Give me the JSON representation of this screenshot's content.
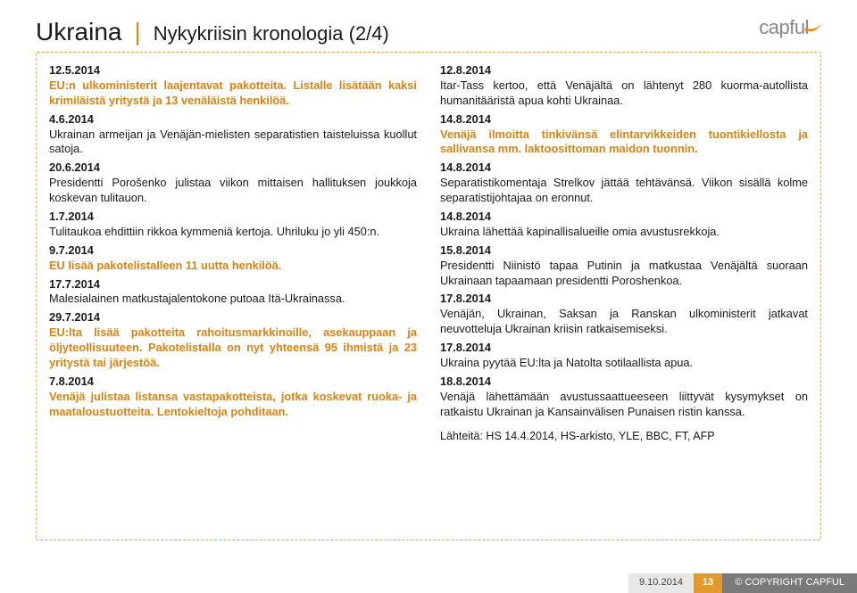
{
  "header": {
    "title_main": "Ukraina",
    "title_sub": "Nykykriisin kronologia (2/4)"
  },
  "logo": {
    "text": "capful"
  },
  "col_left": [
    {
      "date": "12.5.2014",
      "text": "EU:n ulkoministerit laajentavat pakotteita. Listalle lisätään kaksi krimiläistä yritystä ja 13 venäläistä henkilöä.",
      "hl": true
    },
    {
      "date": "4.6.2014",
      "text": "Ukrainan armeijan ja Venäjän-mielisten separatistien taisteluissa kuollut satoja.",
      "hl": false
    },
    {
      "date": "20.6.2014",
      "text": "Presidentti Porošenko julistaa viikon mittaisen hallituksen joukkoja koskevan tulitauon.",
      "hl": false
    },
    {
      "date": "1.7.2014",
      "text": "Tulitaukoa ehdittiin rikkoa kymmeniä kertoja. Uhriluku jo yli 450:n.",
      "hl": false
    },
    {
      "date": "9.7.2014",
      "text": "EU lisää pakotelistalleen 11 uutta henkilöä.",
      "hl": true
    },
    {
      "date": "17.7.2014",
      "text": "Malesialainen matkustajalentokone putoaa Itä-Ukrainassa.",
      "hl": false
    },
    {
      "date": "29.7.2014",
      "text": "EU:lta lisää pakotteita rahoitusmarkkinoille, asekauppaan ja öljyteollisuuteen. Pakotelistalla on nyt yhteensä 95 ihmistä ja 23 yritystä tai järjestöä.",
      "hl": true
    },
    {
      "date": "7.8.2014",
      "text": "Venäjä julistaa listansa vastapakotteista, jotka koskevat ruoka- ja maataloustuotteita. Lentokieltoja pohditaan.",
      "hl": true
    }
  ],
  "col_right": [
    {
      "date": "12.8.2014",
      "text": "Itar-Tass kertoo, että Venäjältä on lähtenyt 280 kuorma-autollista humanitääristä apua kohti Ukrainaa.",
      "hl": false
    },
    {
      "date": "14.8.2014",
      "text": "Venäjä ilmoitta tinkivänsä elintarvikkeiden tuontikiellosta ja sallivansa mm. laktoosittoman maidon tuonnin.",
      "hl": true
    },
    {
      "date": "14.8.2014",
      "text": "Separatistikomentaja Strelkov jättää tehtävänsä. Viikon sisällä kolme separatistijohtajaa on eronnut.",
      "hl": false
    },
    {
      "date": "14.8.2014",
      "text": "Ukraina lähettää kapinallisalueille omia avustusrekkoja.",
      "hl": false
    },
    {
      "date": "15.8.2014",
      "text": "Presidentti Niinistö tapaa Putinin ja matkustaa Venäjältä suoraan Ukrainaan tapaamaan presidentti Poroshenkoa.",
      "hl": false
    },
    {
      "date": "17.8.2014",
      "text": "Venäjän, Ukrainan, Saksan ja Ranskan ulkoministerit jatkavat neuvotteluja Ukrainan kriisin ratkaisemiseksi.",
      "hl": false
    },
    {
      "date": "17.8.2014",
      "text": "Ukraina pyytää EU:lta ja Natolta sotilaallista apua.",
      "hl": false
    },
    {
      "date": "18.8.2014",
      "text": "Venäjä lähettämään avustussaattueeseen liittyvät kysymykset on ratkaistu Ukrainan ja Kansainvälisen Punaisen ristin kanssa.",
      "hl": false
    }
  ],
  "sources": "Lähteitä: HS 14.4.2014, HS-arkisto, YLE, BBC, FT, AFP",
  "footer": {
    "date": "9.10.2014",
    "page": "13",
    "copy": "© COPYRIGHT CAPFUL"
  },
  "colors": {
    "accent": "#e29a2e",
    "accent_text": "#d98316",
    "dash_border": "#e6a43a",
    "footer_grey": "#7a7a7a",
    "footer_light": "#e8e8e8"
  }
}
